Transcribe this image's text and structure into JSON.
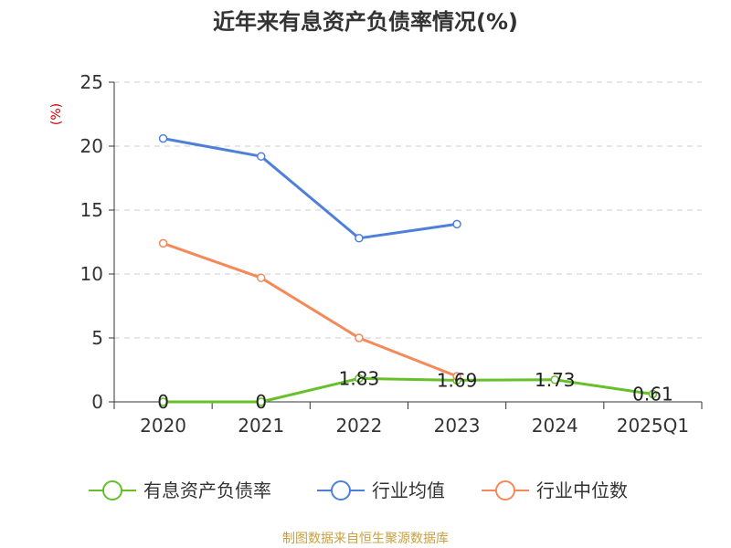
{
  "chart_data": {
    "type": "line",
    "title": "近年来有息资产负债率情况(%)",
    "ylabel": "(%)",
    "categories": [
      "2020",
      "2021",
      "2022",
      "2023",
      "2024",
      "2025Q1"
    ],
    "yticks": [
      "0",
      "5",
      "10",
      "15",
      "20",
      "25"
    ],
    "ylim": [
      0,
      25
    ],
    "grid": true,
    "legend_position": "bottom",
    "series": [
      {
        "name": "有息资产负债率",
        "color": "#66c02a",
        "values": [
          0,
          0,
          1.83,
          1.69,
          1.73,
          0.61
        ],
        "labels": [
          "0",
          "0",
          "1.83",
          "1.69",
          "1.73",
          "0.61"
        ]
      },
      {
        "name": "行业均值",
        "color": "#4f80d9",
        "values": [
          20.6,
          19.2,
          12.8,
          13.9,
          null,
          null
        ]
      },
      {
        "name": "行业中位数",
        "color": "#f5895a",
        "values": [
          12.4,
          9.7,
          5.0,
          2.0,
          null,
          null
        ]
      }
    ]
  },
  "source_text": "制图数据来自恒生聚源数据库",
  "colors": {
    "source": "#c8a040",
    "unit": "#cc0000"
  }
}
